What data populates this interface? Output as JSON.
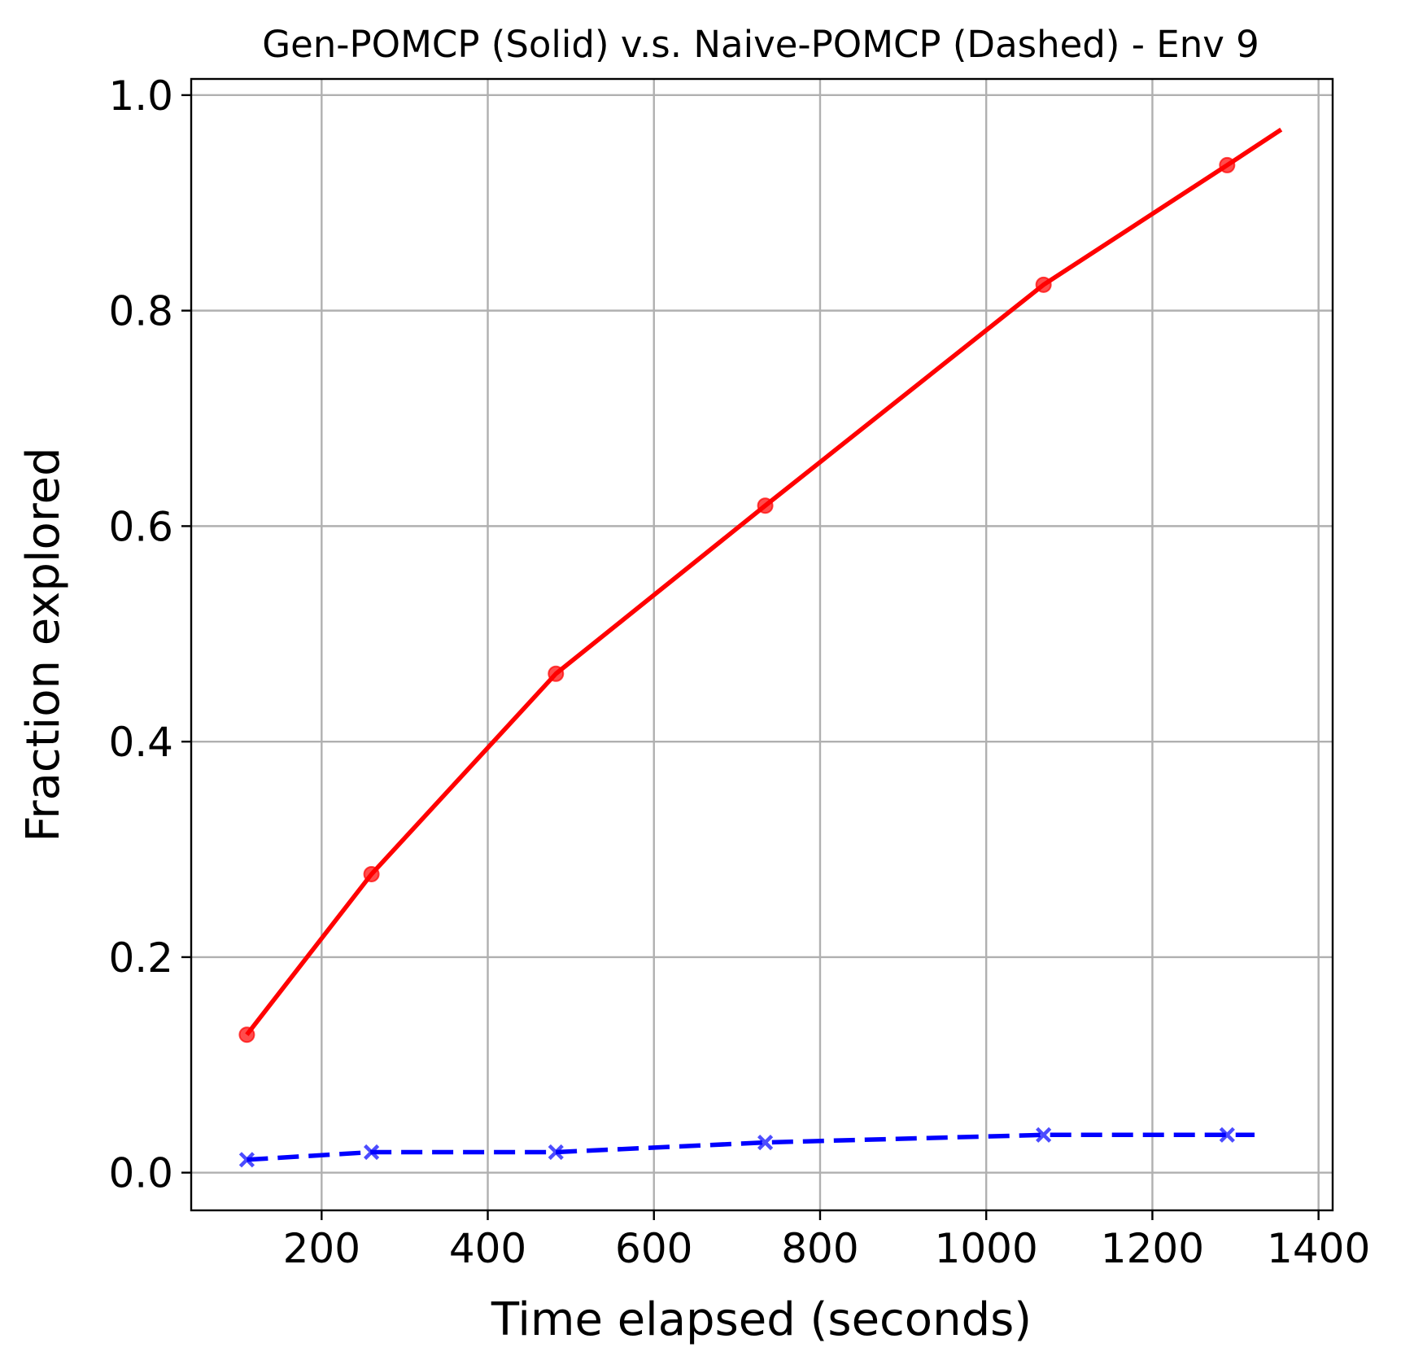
{
  "chart_data": {
    "type": "line",
    "title": "Gen-POMCP (Solid) v.s. Naive-POMCP (Dashed) - Env 9",
    "xlabel": "Time elapsed (seconds)",
    "ylabel": "Fraction explored",
    "xlim": [
      43,
      1417
    ],
    "ylim": [
      -0.035,
      1.015
    ],
    "xticks": [
      200,
      400,
      600,
      800,
      1000,
      1200,
      1400
    ],
    "xtick_labels": [
      "200",
      "400",
      "600",
      "800",
      "1000",
      "1200",
      "1400"
    ],
    "yticks": [
      0.0,
      0.2,
      0.4,
      0.6,
      0.8,
      1.0
    ],
    "ytick_labels": [
      "0.0",
      "0.2",
      "0.4",
      "0.6",
      "0.8",
      "1.0"
    ],
    "grid": true,
    "series": [
      {
        "line_style": "solid",
        "color": "#ff0000",
        "marker": "circle",
        "marker_points": [
          [
            110,
            0.128
          ],
          [
            260,
            0.277
          ],
          [
            482,
            0.463
          ],
          [
            734,
            0.619
          ],
          [
            1069,
            0.824
          ],
          [
            1290,
            0.935
          ]
        ],
        "line_points": [
          [
            110,
            0.128
          ],
          [
            260,
            0.277
          ],
          [
            482,
            0.463
          ],
          [
            734,
            0.619
          ],
          [
            1069,
            0.824
          ],
          [
            1290,
            0.935
          ],
          [
            1355,
            0.968
          ]
        ]
      },
      {
        "line_style": "dashed",
        "color": "#0000ff",
        "marker": "x",
        "marker_points": [
          [
            110,
            0.012
          ],
          [
            260,
            0.019
          ],
          [
            482,
            0.019
          ],
          [
            734,
            0.028
          ],
          [
            1069,
            0.035
          ],
          [
            1290,
            0.035
          ]
        ],
        "line_points": [
          [
            110,
            0.012
          ],
          [
            260,
            0.019
          ],
          [
            482,
            0.019
          ],
          [
            734,
            0.028
          ],
          [
            1069,
            0.035
          ],
          [
            1290,
            0.035
          ],
          [
            1323,
            0.035
          ]
        ]
      }
    ]
  }
}
